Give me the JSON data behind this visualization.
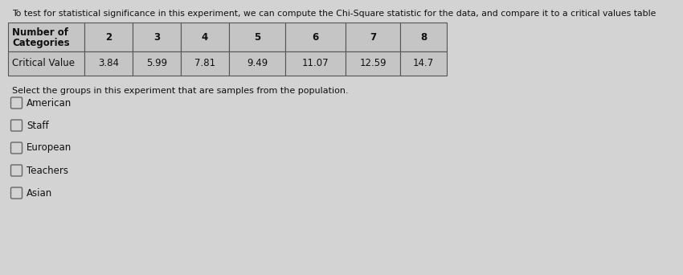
{
  "intro_text": "To test for statistical significance in this experiment, we can compute the Chi-Square statistic for the data, and compare it to a critical values table",
  "table_header_col0": [
    "Number of",
    "Categories"
  ],
  "table_header_nums": [
    "2",
    "3",
    "4",
    "5",
    "6",
    "7",
    "8"
  ],
  "table_row_label": "Critical Value",
  "table_row_vals": [
    "3.84",
    "5.99",
    "7.81",
    "9.49",
    "11.07",
    "12.59",
    "14.7"
  ],
  "question_text": "Select the groups in this experiment that are samples from the population.",
  "options": [
    "American",
    "Staff",
    "European",
    "Teachers",
    "Asian"
  ],
  "bg_color": "#d3d3d3",
  "table_bg": "#c5c5c5",
  "table_border": "#555555",
  "text_color": "#111111",
  "intro_fontsize": 7.8,
  "table_fontsize": 8.5,
  "question_fontsize": 8.0,
  "option_fontsize": 8.5
}
